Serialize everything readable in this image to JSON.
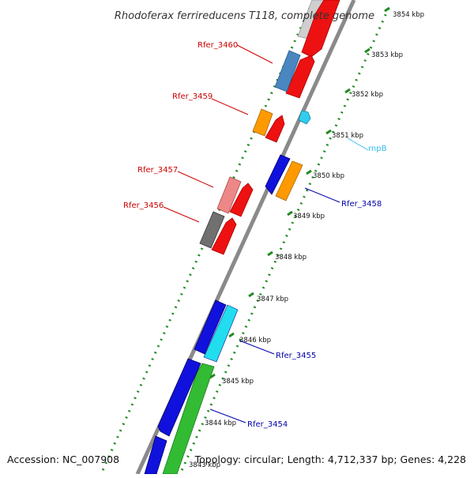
{
  "title": "Rhodoferax ferrireducens T118, complete genome",
  "accession": "Accession: NC_007908",
  "topology_info": "Topology: circular; Length: 4,712,337 bp; Genes: 4,228",
  "ticks": [
    {
      "label": "3854 kbp"
    },
    {
      "label": "3853 kbp"
    },
    {
      "label": "3852 kbp"
    },
    {
      "label": "3851 kbp"
    },
    {
      "label": "3850 kbp"
    },
    {
      "label": "3849 kbp"
    },
    {
      "label": "3848 kbp"
    },
    {
      "label": "3847 kbp"
    },
    {
      "label": "3846 kbp"
    },
    {
      "label": "3845 kbp"
    },
    {
      "label": "3844 kbp"
    },
    {
      "label": "3843 kbp"
    }
  ],
  "gene_labels": [
    {
      "name": "Rfer_3460",
      "color": "#cc0000"
    },
    {
      "name": "Rfer_3459",
      "color": "#cc0000"
    },
    {
      "name": "Rfer_3457",
      "color": "#cc0000"
    },
    {
      "name": "Rfer_3456",
      "color": "#cc0000"
    },
    {
      "name": "rnpB",
      "color": "#33bbee"
    },
    {
      "name": "Rfer_3458",
      "color": "#0000aa"
    },
    {
      "name": "Rfer_3455",
      "color": "#0000aa"
    },
    {
      "name": "Rfer_3454",
      "color": "#0000aa"
    }
  ],
  "colors": {
    "backbone": "#8a8a8a",
    "tick_dots": "#228b22",
    "red": "#ee1111",
    "blue": "#1111dd",
    "orange": "#ff9900",
    "steelblue": "#4a86c0",
    "pink": "#ee8888",
    "gray": "#707070",
    "cyan": "#22ddee",
    "green": "#33bb33",
    "silver": "#c8c8c8"
  }
}
